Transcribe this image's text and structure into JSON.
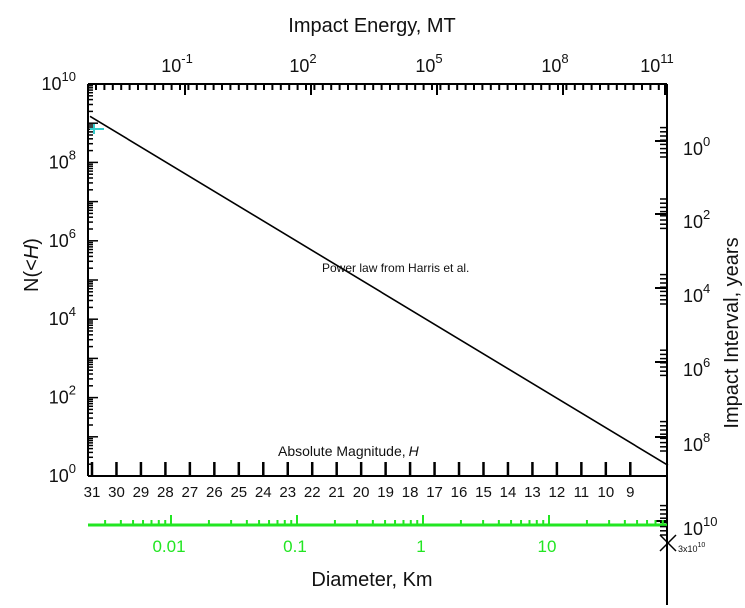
{
  "chart_data": {
    "type": "line",
    "title": "Impact Energy, MT",
    "xlabel": "Diameter, Km",
    "ylabel": "N(<H)",
    "y2label": "Impact Interval, years",
    "inner_xlabel": "Absolute Magnitude,",
    "inner_xlabel_var": "H",
    "annotation": "Power law from Harris et al.",
    "corner_label": "3x10",
    "corner_label_exp": "10",
    "y_scale": "log",
    "ylim": [
      1,
      10000000000
    ],
    "y_ticks": [
      {
        "base": "10",
        "exp": "10",
        "value": 10000000000
      },
      {
        "base": "10",
        "exp": "8",
        "value": 100000000
      },
      {
        "base": "10",
        "exp": "6",
        "value": 1000000
      },
      {
        "base": "10",
        "exp": "4",
        "value": 10000
      },
      {
        "base": "10",
        "exp": "2",
        "value": 100
      },
      {
        "base": "10",
        "exp": "0",
        "value": 1
      }
    ],
    "top_ticks": [
      {
        "base": "10",
        "exp": "-1"
      },
      {
        "base": "10",
        "exp": "2"
      },
      {
        "base": "10",
        "exp": "5"
      },
      {
        "base": "10",
        "exp": "8"
      },
      {
        "base": "10",
        "exp": "11"
      }
    ],
    "right_ticks": [
      {
        "base": "10",
        "exp": "0"
      },
      {
        "base": "10",
        "exp": "2"
      },
      {
        "base": "10",
        "exp": "4"
      },
      {
        "base": "10",
        "exp": "6"
      },
      {
        "base": "10",
        "exp": "8"
      },
      {
        "base": "10",
        "exp": "10"
      }
    ],
    "h_ticks": [
      "31",
      "30",
      "29",
      "28",
      "27",
      "26",
      "25",
      "24",
      "23",
      "22",
      "21",
      "20",
      "19",
      "18",
      "17",
      "16",
      "15",
      "14",
      "13",
      "12",
      "11",
      "10",
      "9"
    ],
    "h_range": [
      31,
      7.5
    ],
    "diameter_ticks": [
      "0.01",
      "0.1",
      "1",
      "10"
    ],
    "series": [
      {
        "name": "Power law from Harris et al.",
        "x": [
          31,
          8
        ],
        "y": [
          1500000000,
          3
        ]
      }
    ],
    "colors": {
      "axis": "#000000",
      "diameter_axis": "#22e622",
      "line": "#000000"
    }
  }
}
